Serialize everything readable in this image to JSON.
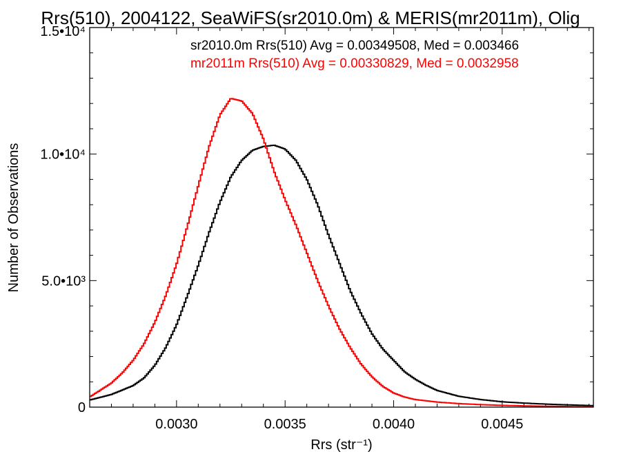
{
  "chart_data": {
    "type": "line",
    "title": "Rrs(510), 2004122, SeaWiFS(sr2010.0m) & MERIS(mr2011m), Olig",
    "xlabel": "Rrs (str⁻¹)",
    "ylabel": "Number of Observations",
    "xlim": [
      0.0026,
      0.00492
    ],
    "ylim": [
      0,
      15000
    ],
    "xticks": [
      {
        "value": 0.003,
        "label": "0.0030"
      },
      {
        "value": 0.0035,
        "label": "0.0035"
      },
      {
        "value": 0.004,
        "label": "0.0040"
      },
      {
        "value": 0.0045,
        "label": "0.0045"
      }
    ],
    "yticks": [
      {
        "value": 0,
        "label": "0"
      },
      {
        "value": 5000,
        "label": "5.0•10³"
      },
      {
        "value": 10000,
        "label": "1.0•10⁴"
      },
      {
        "value": 15000,
        "label": "1.5•10⁴"
      }
    ],
    "annotations": [
      {
        "text": "sr2010.0m Rrs(510) Avg = 0.00349508, Med = 0.003466",
        "color": "#000000"
      },
      {
        "text": "mr2011m Rrs(510) Avg = 0.00330829, Med = 0.0032958",
        "color": "#ff0000"
      }
    ],
    "series": [
      {
        "color": "#000000",
        "points": [
          [
            0.0026,
            280
          ],
          [
            0.0027,
            500
          ],
          [
            0.0028,
            850
          ],
          [
            0.00285,
            1150
          ],
          [
            0.0029,
            1650
          ],
          [
            0.00295,
            2350
          ],
          [
            0.003,
            3250
          ],
          [
            0.00305,
            4400
          ],
          [
            0.0031,
            5600
          ],
          [
            0.00315,
            6900
          ],
          [
            0.0032,
            8100
          ],
          [
            0.00325,
            9100
          ],
          [
            0.0033,
            9750
          ],
          [
            0.00335,
            10150
          ],
          [
            0.0034,
            10300
          ],
          [
            0.00345,
            10350
          ],
          [
            0.0035,
            10200
          ],
          [
            0.00355,
            9750
          ],
          [
            0.0036,
            9000
          ],
          [
            0.00365,
            8000
          ],
          [
            0.0037,
            6800
          ],
          [
            0.00375,
            5700
          ],
          [
            0.0038,
            4600
          ],
          [
            0.00385,
            3700
          ],
          [
            0.0039,
            2900
          ],
          [
            0.00395,
            2300
          ],
          [
            0.004,
            1850
          ],
          [
            0.00405,
            1400
          ],
          [
            0.0041,
            1100
          ],
          [
            0.00415,
            860
          ],
          [
            0.0042,
            660
          ],
          [
            0.0043,
            430
          ],
          [
            0.0044,
            300
          ],
          [
            0.0045,
            210
          ],
          [
            0.0046,
            160
          ],
          [
            0.0047,
            120
          ],
          [
            0.0048,
            90
          ],
          [
            0.00492,
            60
          ]
        ]
      },
      {
        "color": "#ff0000",
        "points": [
          [
            0.0026,
            400
          ],
          [
            0.0027,
            950
          ],
          [
            0.00275,
            1350
          ],
          [
            0.0028,
            1850
          ],
          [
            0.00285,
            2500
          ],
          [
            0.0029,
            3350
          ],
          [
            0.00295,
            4400
          ],
          [
            0.003,
            5650
          ],
          [
            0.00305,
            7150
          ],
          [
            0.0031,
            8750
          ],
          [
            0.00315,
            10300
          ],
          [
            0.0032,
            11550
          ],
          [
            0.00325,
            12200
          ],
          [
            0.0033,
            12100
          ],
          [
            0.00335,
            11600
          ],
          [
            0.0034,
            10600
          ],
          [
            0.00345,
            9300
          ],
          [
            0.0035,
            8200
          ],
          [
            0.00355,
            7200
          ],
          [
            0.0036,
            6100
          ],
          [
            0.00365,
            5000
          ],
          [
            0.0037,
            4000
          ],
          [
            0.00375,
            3100
          ],
          [
            0.0038,
            2350
          ],
          [
            0.00385,
            1700
          ],
          [
            0.0039,
            1200
          ],
          [
            0.00395,
            820
          ],
          [
            0.004,
            560
          ],
          [
            0.00405,
            400
          ],
          [
            0.0041,
            300
          ],
          [
            0.0042,
            200
          ],
          [
            0.0043,
            140
          ],
          [
            0.0044,
            100
          ],
          [
            0.0045,
            70
          ],
          [
            0.0046,
            50
          ],
          [
            0.0047,
            35
          ],
          [
            0.0048,
            25
          ],
          [
            0.00492,
            15
          ]
        ]
      }
    ]
  }
}
